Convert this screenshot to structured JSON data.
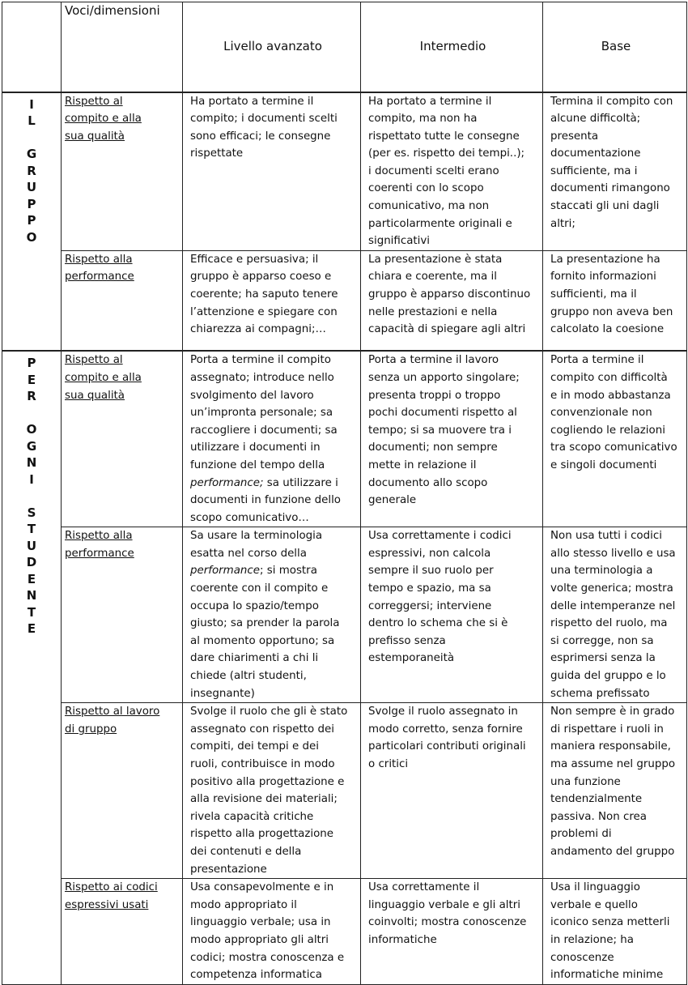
{
  "header": {
    "corner": "",
    "dimensions": "Voci/dimensioni",
    "advanced": "Livello avanzato",
    "intermediate": "Intermedio",
    "base": "Base"
  },
  "groups": [
    {
      "label": "I\nL\n\nG\nR\nU\nP\nP\nO",
      "rows": [
        {
          "dimension": "Rispetto al\ncompito e alla\nsua qualità",
          "advanced": "Ha  portato a termine il\ncompito; i documenti scelti\nsono efficaci; le consegne\nrispettate",
          "intermediate": "Ha portato a termine il\ncompito, ma non ha\nrispettato tutte le consegne\n(per es. rispetto dei tempi..);\ni documenti scelti erano\ncoerenti con lo scopo\ncomunicativo, ma non\nparticolarmente originali e\nsignificativi",
          "base": "Termina il compito con\nalcune difficoltà;\npresenta\ndocumentazione\nsufficiente, ma i\ndocumenti rimangono\nstaccati gli uni dagli\naltri;"
        },
        {
          "dimension": "Rispetto alla\nperformance",
          "advanced": "Efficace e persuasiva; il\ngruppo è apparso coeso e\ncoerente; ha saputo tenere\nl’attenzione e spiegare con\nchiarezza ai compagni;…",
          "intermediate": "La presentazione è stata\nchiara e coerente, ma il\ngruppo è apparso discontinuo\nnelle prestazioni e nella\ncapacità di spiegare agli altri",
          "base": "La presentazione ha\nfornito informazioni\nsufficienti, ma il\ngruppo non aveva ben\ncalcolato la coesione"
        }
      ]
    },
    {
      "label": "P\nE\nR\n\nO\nG\nN\nI\n\nS\nT\nU\nD\nE\nN\nT\nE",
      "rows": [
        {
          "dimension": "Rispetto al\ncompito e alla\nsua qualità",
          "advanced_parts": [
            "Porta a termine il compito\nassegnato; introduce nello\nsvolgimento del lavoro\nun’impronta personale; sa\nraccogliere i documenti; sa\nutilizzare i  documenti in\nfunzione del tempo della\n",
            "performance;",
            " sa utilizzare i\ndocumenti in funzione dello\nscopo comunicativo…"
          ],
          "intermediate": "Porta a termine il lavoro\nsenza un apporto singolare;\npresenta troppi o troppo\npochi documenti rispetto al\ntempo; si sa muovere tra i\ndocumenti; non sempre\nmette in relazione il\ndocumento allo scopo\ngenerale",
          "base": "Porta a termine il\ncompito con difficoltà\ne in modo abbastanza\nconvenzionale non\ncogliendo le relazioni\ntra scopo comunicativo\ne singoli documenti"
        },
        {
          "dimension": "Rispetto alla\nperformance",
          "advanced_parts": [
            "Sa usare la terminologia\nesatta nel corso della\n",
            "performance",
            "; si mostra\ncoerente con il compito e\noccupa lo spazio/tempo\ngiusto; sa prender la parola\nal momento opportuno; sa\ndare chiarimenti a chi li\nchiede (altri studenti,\ninsegnante)"
          ],
          "intermediate": "Usa correttamente i codici\nespressivi, non calcola\nsempre il suo ruolo per\ntempo e spazio, ma sa\ncorreggersi; interviene\ndentro lo schema che si è\nprefisso senza\nestemporaneità",
          "base": "Non usa tutti i codici\nallo stesso livello e usa\nuna terminologia a\nvolte generica; mostra\ndelle intemperanze nel\nrispetto del ruolo, ma\nsi corregge, non sa\nesprimersi senza la\nguida del gruppo e lo\nschema prefissato"
        },
        {
          "dimension": "Rispetto al lavoro\ndi gruppo",
          "advanced": "Svolge il ruolo che gli è stato\nassegnato con rispetto dei\ncompiti, dei tempi e dei\nruoli, contribuisce in modo\npositivo alla progettazione e\nalla revisione dei materiali;\nrivela capacità critiche\nrispetto alla progettazione\ndei contenuti e della\npresentazione",
          "intermediate": "Svolge il ruolo assegnato in\nmodo corretto, senza fornire\nparticolari contributi originali\no critici",
          "base": "Non sempre è in grado\ndi rispettare i ruoli in\nmaniera responsabile,\nma assume nel gruppo\nuna funzione\ntendenzialmente\npassiva. Non crea\nproblemi di\nandamento del gruppo"
        },
        {
          "dimension": "Rispetto ai codici\nespressivi usati",
          "advanced": "Usa consapevolmente e in\nmodo appropriato il\nlinguaggio verbale; usa in\nmodo appropriato gli altri\ncodici; mostra conoscenza e\ncompetenza informatica",
          "intermediate": "Usa correttamente il\nlinguaggio verbale e gli altri\ncoinvolti; mostra conoscenze\ninformatiche",
          "base": "Usa il linguaggio\nverbale e quello\niconico senza metterli\nin relazione; ha\nconoscenze\ninformatiche minime"
        }
      ]
    }
  ]
}
